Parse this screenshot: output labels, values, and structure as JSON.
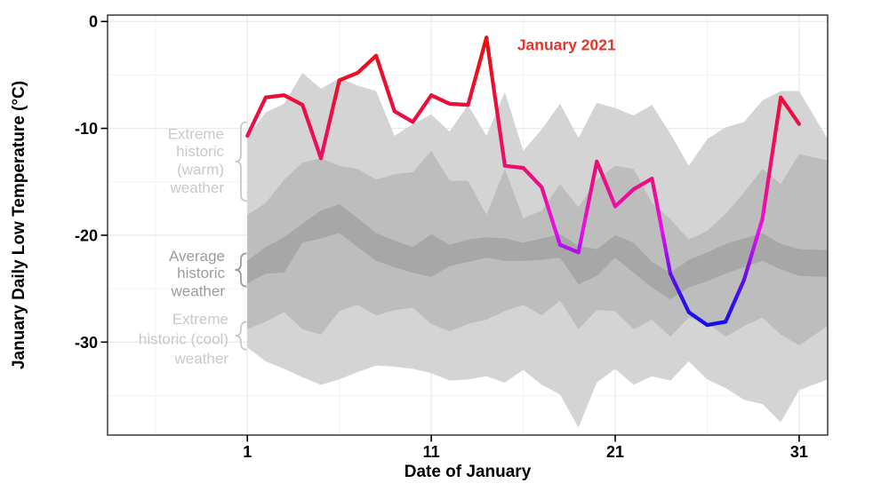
{
  "figure": {
    "line_label": "January 2021",
    "x_title": "Date of January",
    "y_title": "January Daily Low Temperature (°C)"
  },
  "axes": {
    "x_ticks": [
      1,
      11,
      21,
      31
    ],
    "y_ticks": [
      0,
      -10,
      -20,
      -30
    ],
    "x_minor_ticks": [
      -4,
      6,
      16,
      26
    ],
    "y_minor_ticks": [
      -5,
      -15,
      -25,
      -35
    ],
    "x_range": [
      -6.6,
      32.55
    ],
    "y_range": [
      -38.7,
      0.6
    ]
  },
  "colors": {
    "line_label_red": "#e5342a",
    "band_extreme": "#d4d4d4",
    "band_mid": "#bdbdbd",
    "band_average": "#a7a7a7",
    "grid_major": "#eaeaea",
    "grid_minor": "#f2f2f2",
    "panel_border": "#454545",
    "axis_text": "#000000",
    "annotation_light_gray": "#c9c9c9",
    "annotation_dark_gray": "#9c9c9c",
    "line_hue_stops": [
      [
        -1.5,
        360
      ],
      [
        -8,
        347
      ],
      [
        -12,
        337
      ],
      [
        -16,
        325
      ],
      [
        -18,
        310
      ],
      [
        -20,
        295
      ],
      [
        -22,
        280
      ],
      [
        -24,
        262
      ],
      [
        -26,
        250
      ],
      [
        -28.4,
        242
      ]
    ]
  },
  "annotations": [
    {
      "id": "extreme-warm",
      "lines": [
        "Extreme",
        "historic",
        "(warm)",
        "weather"
      ],
      "tone": "light",
      "lines_t": [
        -10.5,
        -12.1,
        -13.8,
        -15.5
      ],
      "brace_t": [
        -9.4,
        -16.8
      ]
    },
    {
      "id": "average",
      "lines": [
        "Average",
        "historic",
        "weather"
      ],
      "tone": "dark",
      "lines_t": [
        -21.9,
        -23.5,
        -25.2
      ],
      "brace_t": [
        -21.7,
        -24.8
      ]
    },
    {
      "id": "extreme-cool",
      "lines": [
        "Extreme",
        "historic (cool)",
        "weather"
      ],
      "tone": "light",
      "lines_t": [
        -27.8,
        -29.7,
        -31.5
      ],
      "brace_t": [
        -28.1,
        -30.7
      ]
    }
  ],
  "chart_data": {
    "type": "line",
    "title": "",
    "xlabel": "Date of January",
    "ylabel": "January Daily Low Temperature (°C)",
    "x": [
      1,
      2,
      3,
      4,
      5,
      6,
      7,
      8,
      9,
      10,
      11,
      12,
      13,
      14,
      15,
      16,
      17,
      18,
      19,
      20,
      21,
      22,
      23,
      24,
      25,
      26,
      27,
      28,
      29,
      30,
      31
    ],
    "series": [
      {
        "name": "January 2021",
        "values": [
          -10.7,
          -7.1,
          -6.9,
          -7.8,
          -12.8,
          -5.5,
          -4.8,
          -3.2,
          -8.4,
          -9.4,
          -6.9,
          -7.7,
          -7.8,
          -1.5,
          -13.5,
          -13.7,
          -15.5,
          -20.9,
          -21.6,
          -13.1,
          -17.3,
          -15.7,
          -14.7,
          -23.6,
          -27.2,
          -28.4,
          -28.1,
          -24.2,
          -18.5,
          -7.1,
          -9.6
        ]
      }
    ],
    "bands": {
      "x": [
        1,
        2,
        3,
        4,
        5,
        6,
        7,
        8,
        9,
        10,
        11,
        12,
        13,
        14,
        15,
        16,
        17,
        18,
        19,
        20,
        21,
        22,
        23,
        24,
        25,
        26,
        27,
        28,
        29,
        30,
        31,
        32.55
      ],
      "extreme_warm_top": [
        -10.8,
        -8.5,
        -7.7,
        -4.8,
        -6.3,
        -5.3,
        -6.0,
        -6.5,
        -10.7,
        -9.6,
        -8.7,
        -10.3,
        -7.8,
        -10.7,
        -6.6,
        -12.1,
        -10.1,
        -7.7,
        -10.9,
        -7.6,
        -8.1,
        -8.8,
        -7.8,
        -10.5,
        -13.5,
        -11.0,
        -9.9,
        -9.4,
        -7.4,
        -6.5,
        -6.5,
        -11.0
      ],
      "mid_top": [
        -18.1,
        -17.0,
        -14.8,
        -13.2,
        -12.8,
        -13.5,
        -13.8,
        -14.8,
        -14.3,
        -14.1,
        -12.1,
        -14.9,
        -14.9,
        -18.1,
        -13.8,
        -18.4,
        -17.7,
        -15.2,
        -17.4,
        -14.8,
        -13.5,
        -13.8,
        -17.0,
        -18.5,
        -20.4,
        -19.6,
        -18.0,
        -16.0,
        -13.8,
        -15.2,
        -12.4,
        -13.0
      ],
      "average_top": [
        -22.4,
        -21.1,
        -20.2,
        -18.9,
        -17.7,
        -17.1,
        -18.4,
        -19.8,
        -20.5,
        -21.1,
        -19.9,
        -20.9,
        -20.4,
        -20.2,
        -20.3,
        -20.7,
        -20.3,
        -19.9,
        -21.0,
        -21.3,
        -20.0,
        -20.7,
        -22.5,
        -23.5,
        -22.3,
        -21.6,
        -20.8,
        -20.3,
        -19.8,
        -20.8,
        -21.3,
        -21.4
      ],
      "average_bottom": [
        -24.5,
        -23.6,
        -23.5,
        -20.7,
        -20.3,
        -19.8,
        -21.1,
        -22.4,
        -23.0,
        -23.5,
        -23.9,
        -22.9,
        -22.5,
        -22.1,
        -22.4,
        -22.4,
        -22.3,
        -22.1,
        -24.6,
        -23.8,
        -22.1,
        -23.5,
        -24.9,
        -26.0,
        -24.9,
        -24.3,
        -23.6,
        -23.0,
        -22.4,
        -23.2,
        -23.8,
        -23.9
      ],
      "mid_bottom": [
        -28.8,
        -28.1,
        -27.2,
        -28.8,
        -29.3,
        -27.1,
        -26.5,
        -27.5,
        -27.0,
        -26.8,
        -28.3,
        -29.0,
        -28.3,
        -27.9,
        -27.1,
        -26.5,
        -27.5,
        -26.1,
        -28.8,
        -27.0,
        -27.1,
        -28.8,
        -27.9,
        -29.5,
        -27.7,
        -28.2,
        -29.5,
        -28.5,
        -27.7,
        -29.3,
        -30.3,
        -28.5
      ],
      "extreme_cool_bottom": [
        -30.5,
        -31.8,
        -32.5,
        -33.3,
        -34.0,
        -33.5,
        -32.8,
        -32.2,
        -32.3,
        -32.5,
        -32.9,
        -33.6,
        -33.5,
        -33.2,
        -33.8,
        -32.6,
        -34.0,
        -34.9,
        -38.0,
        -33.8,
        -32.5,
        -34.0,
        -33.2,
        -33.6,
        -31.8,
        -33.5,
        -34.3,
        -35.4,
        -35.8,
        -37.5,
        -34.5,
        -33.5
      ]
    },
    "line_label_anchor": {
      "day": 14.9,
      "t": -2.2
    }
  }
}
